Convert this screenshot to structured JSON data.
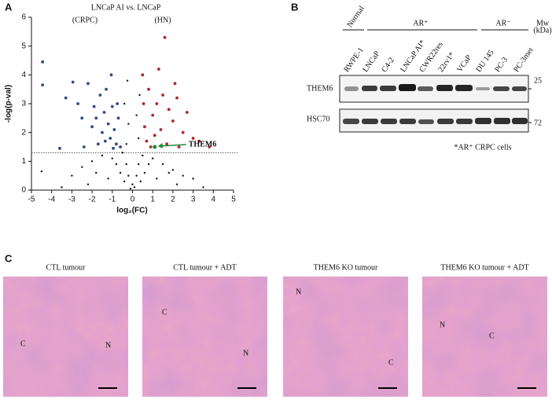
{
  "panels": [
    "A",
    "B",
    "C"
  ],
  "chart_data": {
    "type": "scatter",
    "title": "LNCaP AI vs. LNCaP",
    "subtitle_left": "(CRPC)",
    "subtitle_right": "(HN)",
    "x_label": "log₂(FC)",
    "y_label": "-log(p-val)",
    "xlim": [
      -5,
      5
    ],
    "xticks": [
      -5,
      -4,
      -3,
      -2,
      -1,
      0,
      1,
      2,
      3,
      4,
      5
    ],
    "ylim": [
      0,
      6
    ],
    "yticks": [
      0,
      1,
      2,
      3,
      4,
      5,
      6
    ],
    "threshold": 1.3,
    "series": [
      {
        "color": "#111111",
        "x": [
          -4.5,
          -3.0,
          -2.5,
          -2.0,
          -1.5,
          -1.0,
          -0.5,
          -0.3,
          -0.2,
          0,
          0.2,
          0.3,
          0.5,
          1.0,
          1.5,
          2.0,
          2.5,
          3.0,
          -0.6,
          0.6,
          -1.2,
          1.2,
          -0.1,
          0.1,
          -0.4,
          0.4,
          -0.8,
          0.8,
          -0.3,
          0.3,
          -0.2,
          0.2,
          -0.4,
          0.35,
          -0.25,
          -2.2,
          2.2,
          -3.5,
          3.5,
          -1.8,
          1.8
        ],
        "values": [
          0.65,
          0.5,
          0.8,
          1.0,
          1.2,
          1.1,
          1.3,
          0.9,
          0.5,
          0.2,
          0.5,
          0.9,
          1.2,
          1.1,
          0.9,
          0.7,
          0.5,
          0.4,
          0.6,
          0.6,
          0.4,
          0.4,
          0.05,
          0.1,
          0.3,
          0.3,
          0.9,
          0.9,
          1.6,
          1.8,
          2.3,
          2.6,
          3.0,
          3.3,
          3.8,
          0.2,
          0.2,
          0.1,
          0.1,
          0.6,
          0.6
        ]
      },
      {
        "color": "#2e4a8c",
        "x": [
          -4.45,
          -4.45,
          -3.3,
          -2.95,
          -2.7,
          -2.5,
          -2.2,
          -2.0,
          -1.9,
          -1.8,
          -1.6,
          -1.5,
          -1.4,
          -1.3,
          -1.2,
          -1.1,
          -1.0,
          -0.9,
          -0.8,
          -0.7,
          -0.6,
          -1.7,
          -2.4,
          -3.6,
          -1.05,
          -0.75,
          -1.35,
          -0.95
        ],
        "values": [
          4.45,
          3.65,
          3.2,
          3.75,
          3.0,
          2.5,
          3.7,
          2.2,
          2.9,
          2.5,
          3.3,
          2.0,
          2.7,
          3.5,
          2.3,
          1.8,
          2.9,
          2.1,
          1.6,
          2.5,
          1.5,
          1.6,
          1.5,
          1.45,
          4.0,
          3.0,
          1.7,
          1.45
        ]
      },
      {
        "color": "#b22222",
        "x": [
          1.6,
          0.5,
          0.8,
          1.2,
          1.0,
          1.5,
          1.8,
          2.0,
          2.2,
          2.5,
          2.7,
          3.0,
          3.8,
          3.3,
          0.6,
          0.7,
          1.1,
          1.4,
          0.9,
          1.7,
          2.3,
          0.55,
          1.3,
          2.1
        ],
        "values": [
          5.3,
          4.0,
          3.5,
          3.0,
          2.6,
          3.3,
          2.8,
          2.4,
          3.2,
          2.0,
          2.7,
          1.8,
          1.5,
          1.7,
          2.2,
          1.7,
          1.9,
          2.1,
          1.5,
          1.6,
          1.5,
          3.0,
          4.2,
          3.7
        ]
      }
    ],
    "annotations": [
      {
        "text": "THEM6",
        "x": 1.1,
        "y": 1.5,
        "color": "#1e8a3a"
      }
    ]
  },
  "blot": {
    "groups": [
      "Normal",
      "AR⁺",
      "AR⁻"
    ],
    "mw": [
      "Mw",
      "(kDa)"
    ],
    "rows": [
      {
        "label": "THEM6",
        "marker": "25"
      },
      {
        "label": "HSC70",
        "marker": "72"
      }
    ],
    "lanes": [
      {
        "label": "RWPE-1"
      },
      {
        "label": "LNCaP"
      },
      {
        "label": "C4-2"
      },
      {
        "label": "LNCaP AI*",
        "color": "#e8262a"
      },
      {
        "label": "CWR22res"
      },
      {
        "label": "22rv1*",
        "color": "#e8262a"
      },
      {
        "label": "VCaP"
      },
      {
        "label": "DU 145"
      },
      {
        "label": "PC-3"
      },
      {
        "label": "PC-3met"
      }
    ],
    "footnote": "*AR⁺ CRPC cells",
    "footnote_color": "#e8262a"
  },
  "histology": [
    {
      "title": "CTL tumour",
      "marks": [
        "C",
        "N"
      ]
    },
    {
      "title": "CTL tumour + ADT",
      "marks": [
        "C",
        "N"
      ]
    },
    {
      "title": "THEM6 KO tumour",
      "marks": [
        "N",
        "C"
      ]
    },
    {
      "title": "THEM6 KO tumour + ADT",
      "marks": [
        "N",
        "C"
      ]
    }
  ]
}
